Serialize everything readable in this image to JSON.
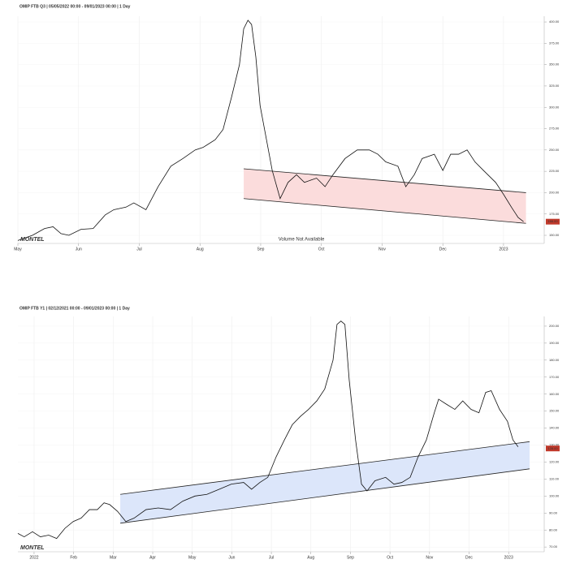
{
  "chart_data": [
    {
      "type": "line",
      "title": "OMIP FTB Q3 | 05/05/2022 00:00 - 09/01/2023 00:00 | 1 Day",
      "annotation": "Volume Not Available",
      "logo": "MONTEL",
      "color": "#111111",
      "x": [
        5.0,
        5.24,
        5.44,
        5.58,
        5.71,
        5.84,
        6.04,
        6.24,
        6.44,
        6.58,
        6.78,
        6.91,
        7.11,
        7.31,
        7.52,
        7.72,
        7.92,
        8.05,
        8.25,
        8.38,
        8.52,
        8.65,
        8.72,
        8.79,
        8.85,
        8.92,
        8.99,
        9.09,
        9.19,
        9.32,
        9.45,
        9.59,
        9.72,
        9.92,
        10.06,
        10.19,
        10.39,
        10.59,
        10.79,
        10.93,
        11.06,
        11.26,
        11.39,
        11.53,
        11.66,
        11.86,
        12.0,
        12.13,
        12.26,
        12.4,
        12.53,
        12.67,
        12.87,
        13.0,
        13.13,
        13.24,
        13.33
      ],
      "values": [
        144,
        150,
        158,
        160,
        152,
        150,
        157,
        158,
        174,
        180,
        183,
        188,
        180,
        207,
        231,
        240,
        250,
        253,
        262,
        274,
        312,
        350,
        392,
        402,
        397,
        359,
        302,
        264,
        226,
        193,
        212,
        221,
        212,
        217,
        207,
        221,
        240,
        250,
        250,
        245,
        236,
        231,
        207,
        221,
        240,
        245,
        226,
        245,
        245,
        250,
        236,
        226,
        212,
        198,
        183,
        171,
        166
      ],
      "channel": {
        "fill": "#fbdcdc",
        "x": [
          8.72,
          13.37
        ],
        "upper": [
          228,
          200
        ],
        "lower": [
          193,
          164
        ]
      },
      "last_label": {
        "value": 166,
        "label": "166.00"
      },
      "xlim": [
        5,
        13.67
      ],
      "xticks": [
        {
          "value": 5,
          "label": "May"
        },
        {
          "value": 6,
          "label": "Jun"
        },
        {
          "value": 7,
          "label": "Jul"
        },
        {
          "value": 8,
          "label": "Aug"
        },
        {
          "value": 9,
          "label": "Sep"
        },
        {
          "value": 10,
          "label": "Oct"
        },
        {
          "value": 11,
          "label": "Nov"
        },
        {
          "value": 12,
          "label": "Dec"
        },
        {
          "value": 13,
          "label": "2023"
        }
      ],
      "ylim": [
        140.5,
        406.7
      ],
      "yticks": [
        {
          "value": 150,
          "label": "150.00"
        },
        {
          "value": 175,
          "label": "175.00"
        },
        {
          "value": 200,
          "label": "200.00"
        },
        {
          "value": 225,
          "label": "225.00"
        },
        {
          "value": 250,
          "label": "250.00"
        },
        {
          "value": 275,
          "label": "275.00"
        },
        {
          "value": 300,
          "label": "300.00"
        },
        {
          "value": 325,
          "label": "325.00"
        },
        {
          "value": 350,
          "label": "350.00"
        },
        {
          "value": 375,
          "label": "375.00"
        },
        {
          "value": 400,
          "label": "400.00"
        }
      ],
      "grid": true
    },
    {
      "type": "line",
      "title": "OMIP FTB Y1 | 02/12/2021 00:00 - 09/01/2023 00:00 | 1 Day",
      "logo": "MONTEL",
      "color": "#111111",
      "x": [
        0.59,
        0.75,
        0.96,
        1.16,
        1.37,
        1.57,
        1.78,
        1.99,
        2.19,
        2.4,
        2.6,
        2.77,
        2.91,
        3.11,
        3.32,
        3.53,
        3.83,
        4.14,
        4.45,
        4.76,
        5.07,
        5.37,
        5.68,
        5.99,
        6.3,
        6.5,
        6.71,
        6.91,
        7.12,
        7.33,
        7.53,
        7.74,
        7.94,
        8.15,
        8.35,
        8.56,
        8.66,
        8.76,
        8.86,
        8.97,
        9.13,
        9.28,
        9.42,
        9.62,
        9.89,
        10.1,
        10.3,
        10.51,
        10.71,
        10.92,
        11.12,
        11.23,
        11.43,
        11.64,
        11.84,
        12.05,
        12.25,
        12.42,
        12.56,
        12.77,
        12.97,
        13.11,
        13.24
      ],
      "values": [
        78,
        76,
        79,
        76,
        77,
        75,
        81,
        85,
        87,
        92,
        92,
        96,
        95,
        91,
        85,
        87,
        92,
        93,
        92,
        97,
        100,
        101,
        104,
        107,
        108,
        104,
        108,
        111,
        123,
        133,
        142,
        147,
        151,
        156,
        163,
        180,
        201,
        203,
        201,
        168,
        133,
        107,
        103,
        109,
        111,
        107,
        108,
        111,
        123,
        133,
        149,
        157,
        154,
        151,
        156,
        151,
        149,
        161,
        162,
        151,
        144,
        133,
        129
      ],
      "channel": {
        "fill": "#dce6fa",
        "x": [
          3.18,
          13.53
        ],
        "upper": [
          101,
          132
        ],
        "lower": [
          84,
          116
        ]
      },
      "last_label": {
        "value": 128,
        "label": "128.00"
      },
      "xlim": [
        0.59,
        13.9
      ],
      "xticks": [
        {
          "value": 1,
          "label": "2022"
        },
        {
          "value": 2,
          "label": "Feb"
        },
        {
          "value": 3,
          "label": "Mar"
        },
        {
          "value": 4,
          "label": "Apr"
        },
        {
          "value": 5,
          "label": "May"
        },
        {
          "value": 6,
          "label": "Jun"
        },
        {
          "value": 7,
          "label": "Jul"
        },
        {
          "value": 8,
          "label": "Aug"
        },
        {
          "value": 9,
          "label": "Sep"
        },
        {
          "value": 10,
          "label": "Oct"
        },
        {
          "value": 11,
          "label": "Nov"
        },
        {
          "value": 12,
          "label": "Dec"
        },
        {
          "value": 13,
          "label": "2023"
        }
      ],
      "ylim": [
        67.2,
        205.7
      ],
      "yticks": [
        {
          "value": 70,
          "label": "70.00"
        },
        {
          "value": 80,
          "label": "80.00"
        },
        {
          "value": 90,
          "label": "90.00"
        },
        {
          "value": 100,
          "label": "100.00"
        },
        {
          "value": 110,
          "label": "110.00"
        },
        {
          "value": 120,
          "label": "120.00"
        },
        {
          "value": 130,
          "label": "130.00"
        },
        {
          "value": 140,
          "label": "140.00"
        },
        {
          "value": 150,
          "label": "150.00"
        },
        {
          "value": 160,
          "label": "160.00"
        },
        {
          "value": 170,
          "label": "170.00"
        },
        {
          "value": 180,
          "label": "180.00"
        },
        {
          "value": 190,
          "label": "190.00"
        },
        {
          "value": 200,
          "label": "200.00"
        }
      ],
      "grid": true
    }
  ]
}
